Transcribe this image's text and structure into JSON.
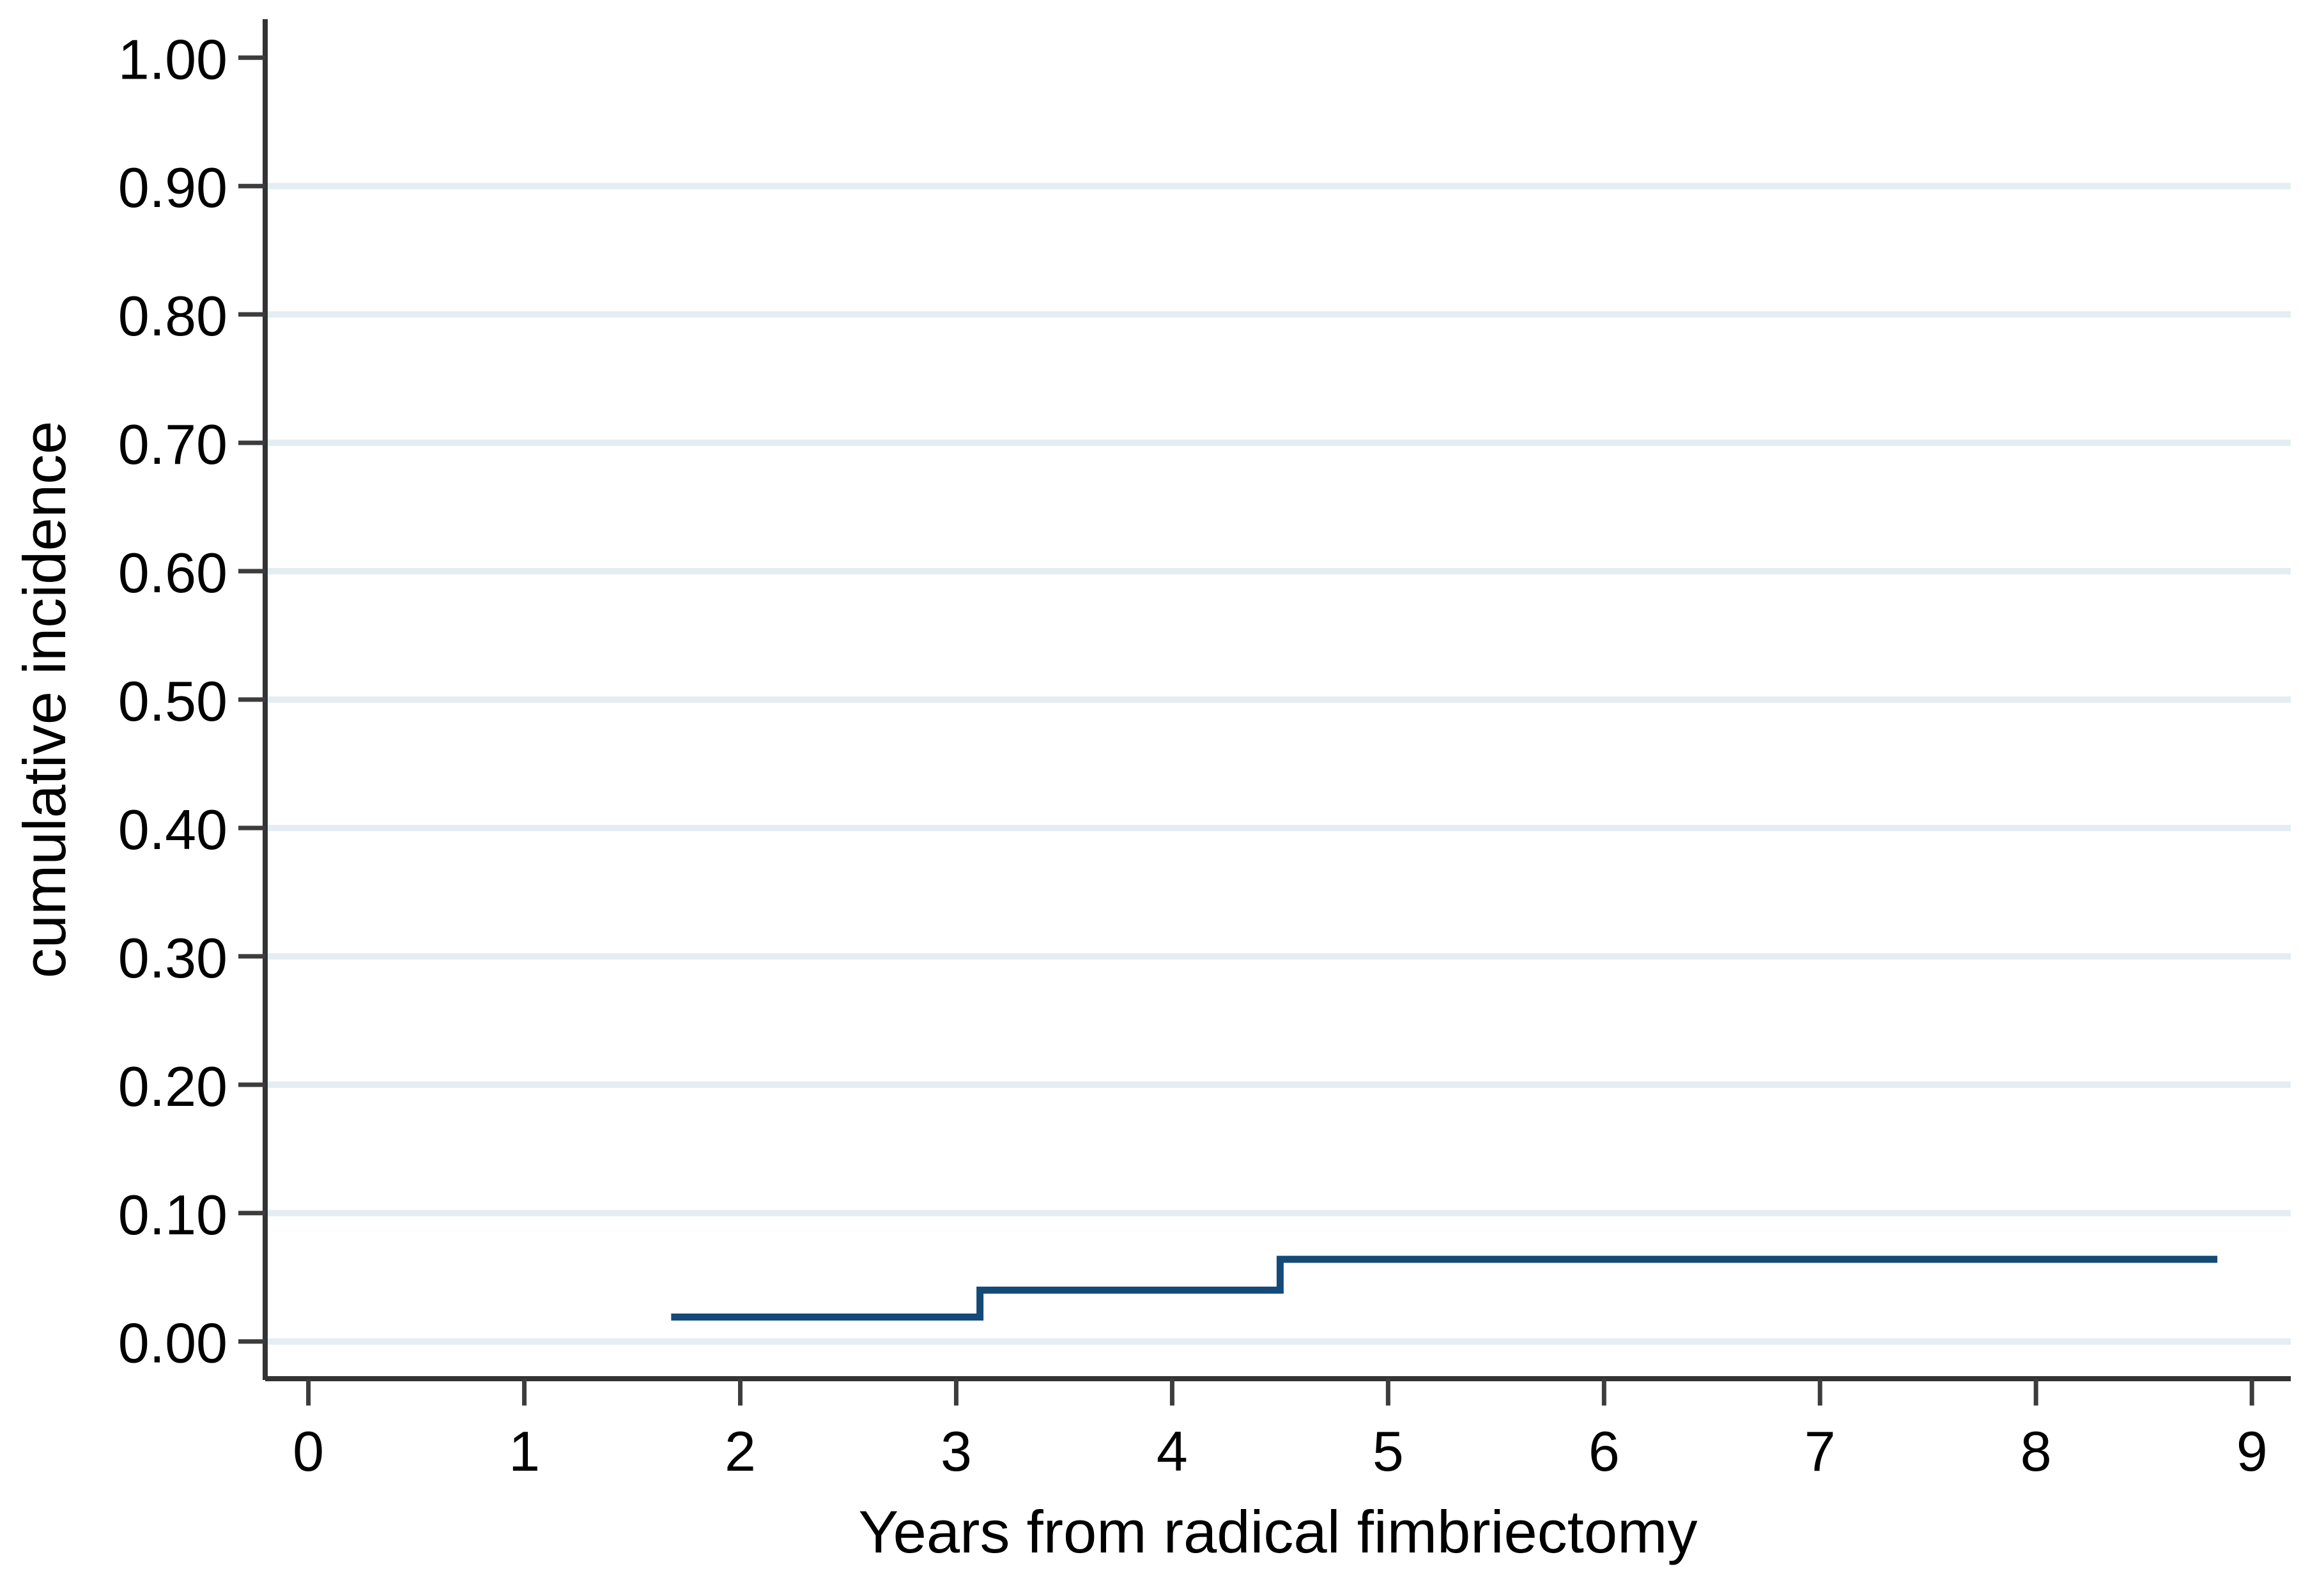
{
  "chart_data": {
    "type": "line",
    "step": true,
    "title": "",
    "xlabel": "Years from radical fimbriectomy",
    "ylabel": "cumulative incidence",
    "xlim": [
      -0.2,
      9.18
    ],
    "ylim": [
      -0.03,
      1.03
    ],
    "x_ticks": [
      0,
      1,
      2,
      3,
      4,
      5,
      6,
      7,
      8,
      9
    ],
    "x_tick_labels": [
      "0",
      "1",
      "2",
      "3",
      "4",
      "5",
      "6",
      "7",
      "8",
      "9"
    ],
    "y_ticks": [
      0.0,
      0.1,
      0.2,
      0.3,
      0.4,
      0.5,
      0.6,
      0.7,
      0.8,
      0.9,
      1.0
    ],
    "y_tick_labels": [
      "0.00",
      "0.10",
      "0.20",
      "0.30",
      "0.40",
      "0.50",
      "0.60",
      "0.70",
      "0.80",
      "0.90",
      "1.00"
    ],
    "grid": "horizontal",
    "gridline_levels": [
      0.0,
      0.1,
      0.2,
      0.3,
      0.4,
      0.5,
      0.6,
      0.7,
      0.8,
      0.9
    ],
    "legend": "none",
    "series": [
      {
        "name": "cumulative incidence",
        "color": "#134a78",
        "points": [
          [
            1.68,
            0.019
          ],
          [
            3.11,
            0.019
          ],
          [
            3.11,
            0.04
          ],
          [
            4.5,
            0.04
          ],
          [
            4.5,
            0.064
          ],
          [
            8.84,
            0.064
          ]
        ]
      }
    ],
    "colors": {
      "line": "#134a78",
      "grid": "#e4eef2",
      "axis": "#333333",
      "tick": "#3c3c3c",
      "text": "#000000",
      "background": "#ffffff"
    }
  }
}
